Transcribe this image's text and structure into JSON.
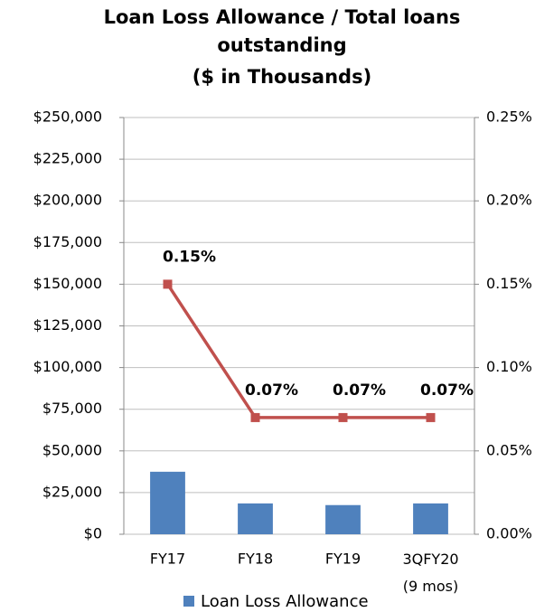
{
  "chart_data": {
    "type": "bar",
    "title": [
      "Loan Loss Allowance / Total loans",
      "outstanding",
      "($ in Thousands)"
    ],
    "categories": [
      "FY17",
      "FY18",
      "FY19",
      "3QFY20 (9 mos)"
    ],
    "series": [
      {
        "name": "Loan Loss Allowance",
        "type": "bar",
        "color": "#4f81bd",
        "values": [
          37500,
          18500,
          17500,
          18500
        ]
      },
      {
        "type": "line",
        "axis": "y2",
        "color": "#c0504d",
        "values": [
          0.15,
          0.07,
          0.07,
          0.07
        ],
        "value_labels": [
          "0.15%",
          "0.07%",
          "0.07%",
          "0.07%"
        ]
      }
    ],
    "ylim": [
      0,
      250000
    ],
    "yticks": [
      {
        "value": 0,
        "label": "$0"
      },
      {
        "value": 25000,
        "label": "$25,000"
      },
      {
        "value": 50000,
        "label": "$50,000"
      },
      {
        "value": 75000,
        "label": "$75,000"
      },
      {
        "value": 100000,
        "label": "$100,000"
      },
      {
        "value": 125000,
        "label": "$125,000"
      },
      {
        "value": 150000,
        "label": "$150,000"
      },
      {
        "value": 175000,
        "label": "$175,000"
      },
      {
        "value": 200000,
        "label": "$200,000"
      },
      {
        "value": 225000,
        "label": "$225,000"
      },
      {
        "value": 250000,
        "label": "$250,000"
      }
    ],
    "y2lim": [
      0,
      0.25
    ],
    "y2ticks": [
      {
        "value": 0,
        "label": "0.00%"
      },
      {
        "value": 0.05,
        "label": "0.05%"
      },
      {
        "value": 0.1,
        "label": "0.10%"
      },
      {
        "value": 0.15,
        "label": "0.15%"
      },
      {
        "value": 0.2,
        "label": "0.20%"
      },
      {
        "value": 0.25,
        "label": "0.25%"
      }
    ],
    "grid": true,
    "legend": "bottom"
  }
}
